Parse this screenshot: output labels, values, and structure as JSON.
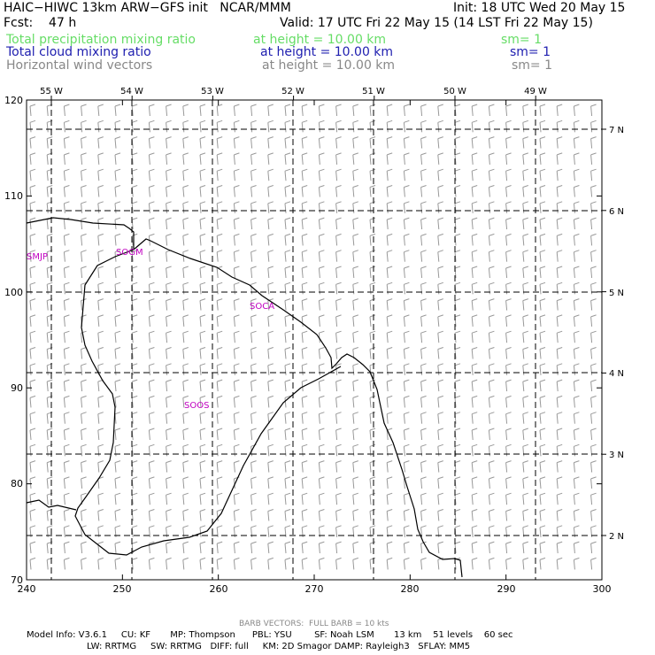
{
  "header": {
    "model_title": "HAIC−HIWC 13km ARW−GFS init   NCAR/MMM",
    "init": "Init: 18 UTC Wed 20 May 15",
    "fcst": "Fcst:    47 h",
    "valid": "Valid: 17 UTC Fri 22 May 15 (14 LST Fri 22 May 15)"
  },
  "fields": [
    {
      "name": "Total precipitation mixing ratio",
      "height": "at height = 10.00 km",
      "sm": "sm= 1",
      "color": "#66dd66"
    },
    {
      "name": "Total cloud mixing ratio",
      "height": "at height = 10.00 km",
      "sm": "sm= 1",
      "color": "#2020b0"
    },
    {
      "name": "Horizontal wind vectors",
      "height": "at height = 10.00 km",
      "sm": "sm= 1",
      "color": "#888888"
    }
  ],
  "map": {
    "x_ticks": [
      "240",
      "250",
      "260",
      "270",
      "280",
      "290",
      "300"
    ],
    "y_ticks": [
      "70",
      "80",
      "90",
      "100",
      "110",
      "120"
    ],
    "lon_labels": [
      "55 W",
      "54 W",
      "53 W",
      "52 W",
      "51 W",
      "50 W",
      "49 W"
    ],
    "lat_labels": [
      "2 N",
      "3 N",
      "4 N",
      "5 N",
      "6 N",
      "7 N"
    ],
    "stations": [
      "SMJP",
      "SOGM",
      "SOCA",
      "SOOS"
    ],
    "barb_color": "#999999"
  },
  "footer": {
    "barb_note": "BARB VECTORS:  FULL BARB = 10 kts",
    "line1": "Model Info: V3.6.1     CU: KF       MP: Thompson      PBL: YSU        SF: Noah LSM       13 km    51 levels    60 sec",
    "line2": "LW: RRTMG     SW: RRTMG   DIFF: full     KM: 2D Smagor DAMP: Rayleigh3   SFLAY: MM5"
  }
}
